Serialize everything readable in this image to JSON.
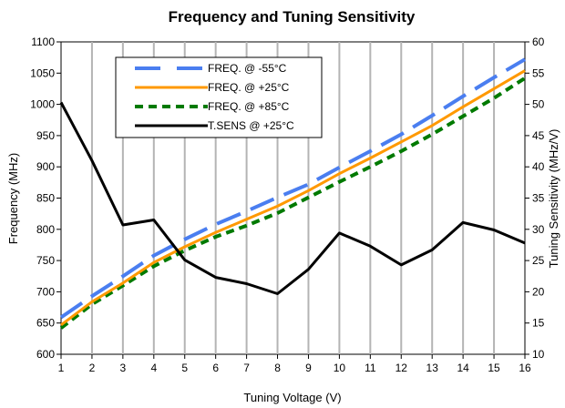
{
  "chart_data": {
    "type": "line",
    "title": "Frequency and Tuning Sensitivity",
    "xlabel": "Tuning Voltage (V)",
    "ylabel": "Frequency (MHz)",
    "y2label": "Tuning Sensitivity (MHz/V)",
    "x": [
      1,
      2,
      3,
      4,
      5,
      6,
      7,
      8,
      9,
      10,
      11,
      12,
      13,
      14,
      15,
      16
    ],
    "xlim": [
      1,
      16
    ],
    "ylim": [
      600,
      1100
    ],
    "y2lim": [
      10,
      60
    ],
    "yticks": [
      600,
      650,
      700,
      750,
      800,
      850,
      900,
      950,
      1000,
      1050,
      1100
    ],
    "y2ticks": [
      10,
      15,
      20,
      25,
      30,
      35,
      40,
      45,
      50,
      55,
      60
    ],
    "grid": {
      "vertical": true,
      "horizontal": false
    },
    "legend_position": "top-left",
    "series": [
      {
        "name": "FREQ. @ -55°C",
        "axis": "left",
        "style": "dashed",
        "color": "#4a7ef0",
        "values": [
          659,
          693,
          725,
          758,
          784,
          808,
          829,
          851,
          872,
          899,
          925,
          952,
          982,
          1013,
          1043,
          1072
        ]
      },
      {
        "name": "FREQ. @ +25°C",
        "axis": "left",
        "style": "solid",
        "color": "#ff9900",
        "values": [
          647,
          684,
          714,
          747,
          772,
          795,
          816,
          837,
          862,
          889,
          914,
          940,
          966,
          996,
          1025,
          1054
        ]
      },
      {
        "name": "FREQ. @ +85°C",
        "axis": "left",
        "style": "dotted",
        "color": "#007a00",
        "values": [
          642,
          680,
          710,
          741,
          766,
          788,
          806,
          826,
          851,
          876,
          900,
          925,
          952,
          981,
          1010,
          1042
        ]
      },
      {
        "name": "T.SENS @ +25°C",
        "axis": "right",
        "style": "solid",
        "color": "#000000",
        "values": [
          50.3,
          41.0,
          30.7,
          31.5,
          25.1,
          22.3,
          21.3,
          19.7,
          23.6,
          29.4,
          27.3,
          24.3,
          26.7,
          31.1,
          29.9,
          27.8
        ]
      }
    ]
  }
}
